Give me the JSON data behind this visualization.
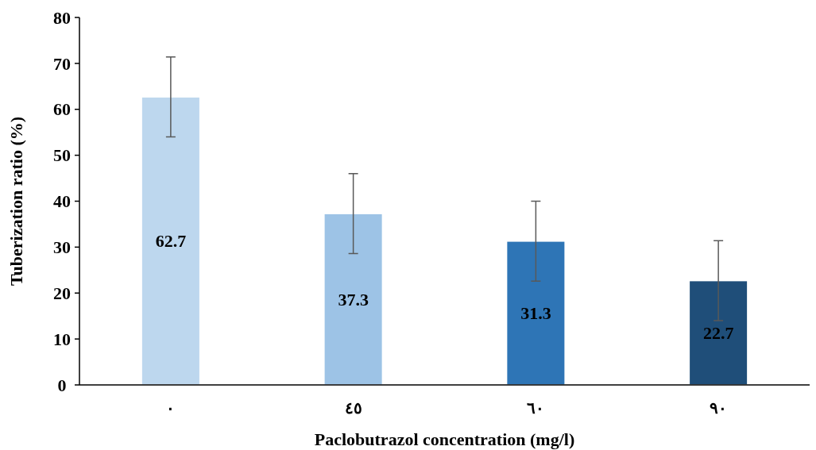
{
  "chart_data": {
    "type": "bar",
    "xlabel": "Paclobutrazol concentration (mg/l)",
    "ylabel": "Tuberization ratio (%)",
    "categories": [
      "٠",
      "٤٥",
      "٦٠",
      "٩٠"
    ],
    "values": [
      62.7,
      37.3,
      31.3,
      22.7
    ],
    "colors": [
      "#bdd7ee",
      "#9dc3e6",
      "#2e75b6",
      "#1f4e79"
    ],
    "errors": [
      8.7,
      8.7,
      8.7,
      8.7
    ],
    "data_labels": true,
    "ylim": [
      0,
      80
    ],
    "yticks": [
      0,
      10,
      20,
      30,
      40,
      50,
      60,
      70,
      80
    ],
    "grid": false
  }
}
